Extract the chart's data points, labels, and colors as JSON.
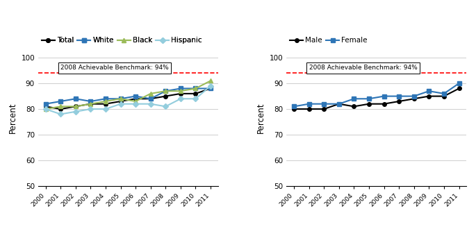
{
  "years": [
    2000,
    2001,
    2002,
    2003,
    2004,
    2005,
    2006,
    2007,
    2008,
    2009,
    2010,
    2011
  ],
  "left": {
    "Total": [
      81,
      80,
      81,
      82,
      82,
      83,
      84,
      84,
      85,
      86,
      86,
      88
    ],
    "White": [
      82,
      83,
      84,
      83,
      84,
      84,
      85,
      84,
      87,
      88,
      88,
      88
    ],
    "Black": [
      80,
      81,
      81,
      82,
      83,
      84,
      83,
      86,
      87,
      87,
      88,
      91
    ],
    "Hispanic": [
      80,
      78,
      79,
      80,
      80,
      82,
      82,
      82,
      81,
      84,
      84,
      89
    ]
  },
  "right": {
    "Male": [
      80,
      80,
      80,
      82,
      81,
      82,
      82,
      83,
      84,
      85,
      85,
      88
    ],
    "Female": [
      81,
      82,
      82,
      82,
      84,
      84,
      85,
      85,
      85,
      87,
      86,
      90
    ]
  },
  "left_series_styles": {
    "Total": {
      "color": "#000000",
      "marker": "o",
      "linestyle": "-",
      "linewidth": 1.5
    },
    "White": {
      "color": "#2E75B6",
      "marker": "s",
      "linestyle": "-",
      "linewidth": 1.5
    },
    "Black": {
      "color": "#9BBB59",
      "marker": "^",
      "linestyle": "-",
      "linewidth": 1.5
    },
    "Hispanic": {
      "color": "#93CDDD",
      "marker": "D",
      "linestyle": "-",
      "linewidth": 1.5
    }
  },
  "right_series_styles": {
    "Male": {
      "color": "#000000",
      "marker": "o",
      "linestyle": "-",
      "linewidth": 1.5
    },
    "Female": {
      "color": "#2E75B6",
      "marker": "s",
      "linestyle": "-",
      "linewidth": 1.5
    }
  },
  "left_legend_order": [
    "Total",
    "White",
    "Black",
    "Hispanic"
  ],
  "right_legend_order": [
    "Male",
    "Female"
  ],
  "benchmark": 94,
  "benchmark_label": "2008 Achievable Benchmark: 94%",
  "benchmark_line_color": "#FF0000",
  "benchmark_text_color": "#000000",
  "ylim": [
    50,
    103
  ],
  "yticks": [
    50,
    60,
    70,
    80,
    90,
    100
  ],
  "ylabel": "Percent",
  "background_color": "#FFFFFF",
  "grid_color": "#BBBBBB",
  "markersize": 4
}
